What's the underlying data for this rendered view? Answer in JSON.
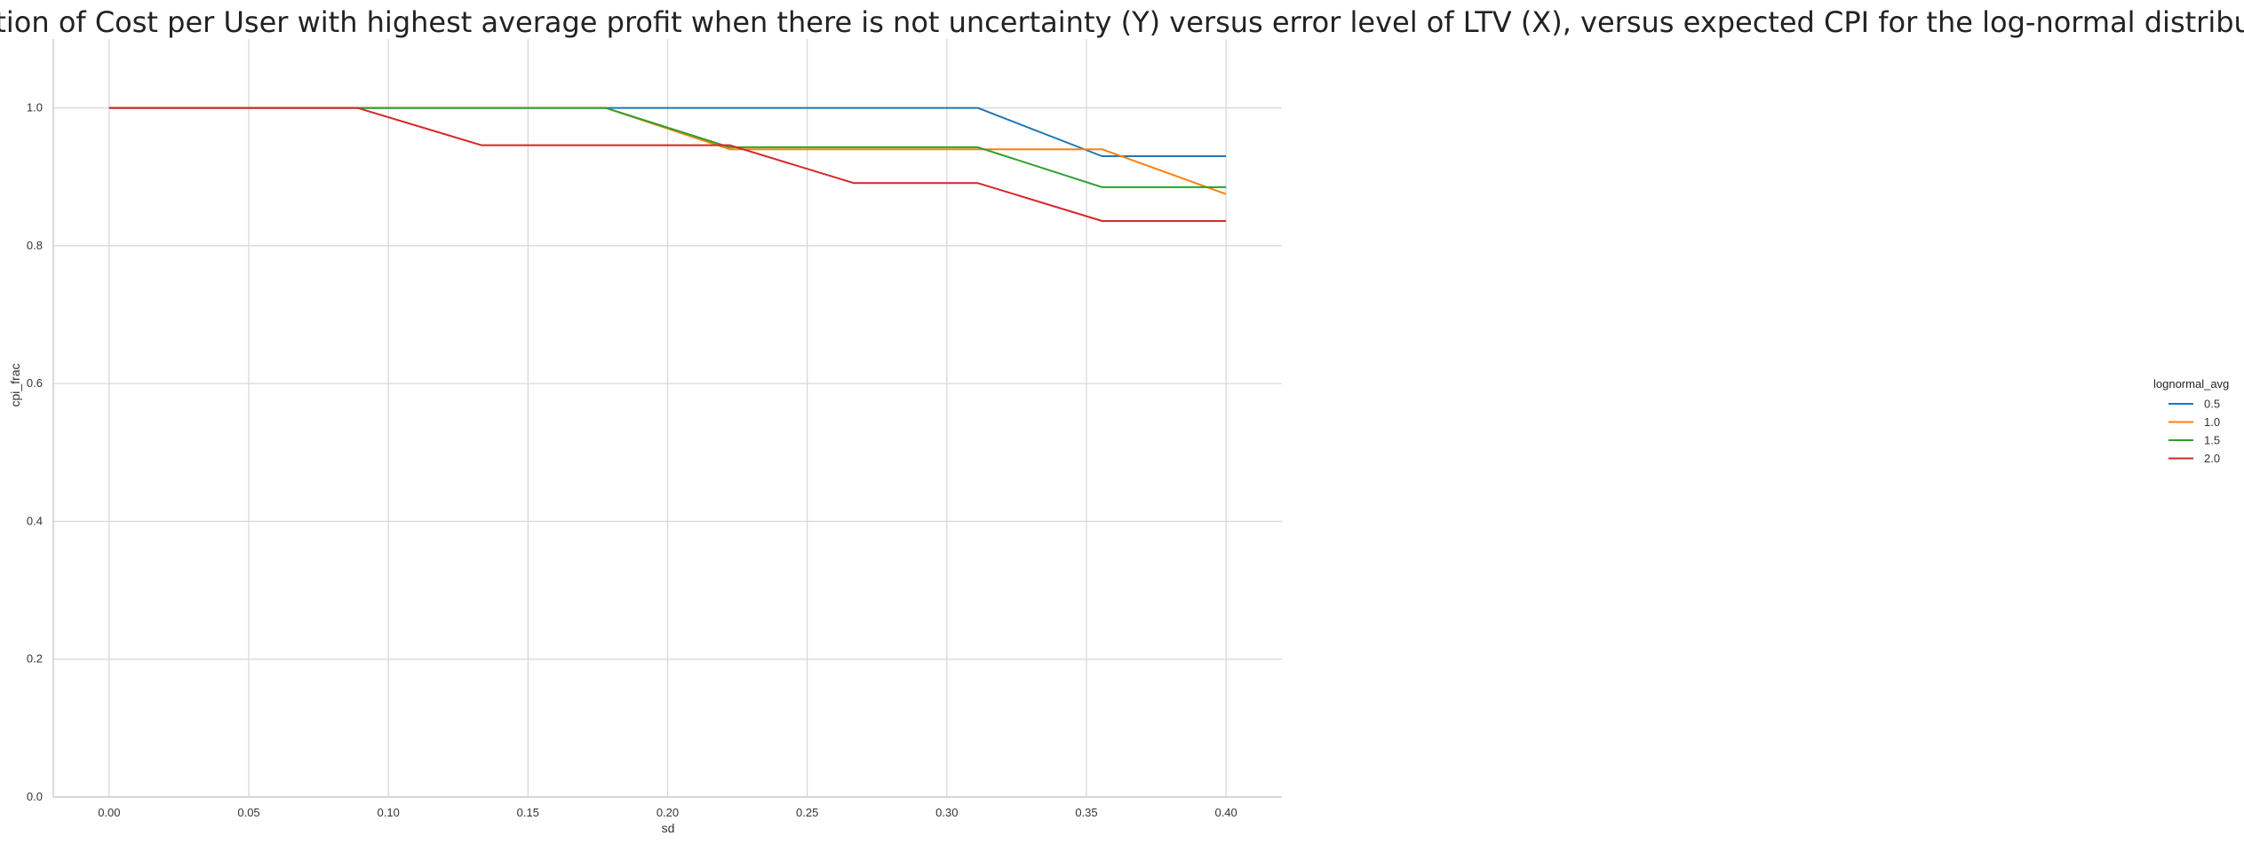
{
  "chart_data": {
    "type": "line",
    "title": "Fraction of Cost per User with highest average profit when there is not uncertainty (Y) versus error level of LTV (X), versus expected CPI for the log-normal distribution",
    "xlabel": "sd",
    "ylabel": "cpi_frac",
    "xlim": [
      -0.02,
      0.42
    ],
    "ylim": [
      0.0,
      1.1
    ],
    "xticks": [
      "0.00",
      "0.05",
      "0.10",
      "0.15",
      "0.20",
      "0.25",
      "0.30",
      "0.35",
      "0.40"
    ],
    "yticks": [
      "0.0",
      "0.2",
      "0.4",
      "0.6",
      "0.8",
      "1.0"
    ],
    "grid": true,
    "legend": {
      "title": "lognormal_avg",
      "placement": "right"
    },
    "series": [
      {
        "name": "0.5",
        "color": "#1f77b4",
        "x": [
          0.0,
          0.0444,
          0.0889,
          0.1333,
          0.1778,
          0.2222,
          0.2667,
          0.3111,
          0.3556,
          0.4
        ],
        "y": [
          1.0,
          1.0,
          1.0,
          1.0,
          1.0,
          1.0,
          1.0,
          1.0,
          0.93,
          0.93
        ]
      },
      {
        "name": "1.0",
        "color": "#ff7f0e",
        "x": [
          0.0,
          0.0444,
          0.0889,
          0.1333,
          0.1778,
          0.2222,
          0.2667,
          0.3111,
          0.3556,
          0.4
        ],
        "y": [
          1.0,
          1.0,
          1.0,
          1.0,
          1.0,
          0.94,
          0.94,
          0.94,
          0.94,
          0.875
        ]
      },
      {
        "name": "1.5",
        "color": "#2ca02c",
        "x": [
          0.0,
          0.0444,
          0.0889,
          0.1333,
          0.1778,
          0.2222,
          0.2667,
          0.3111,
          0.3556,
          0.4
        ],
        "y": [
          1.0,
          1.0,
          1.0,
          1.0,
          1.0,
          0.943,
          0.943,
          0.943,
          0.885,
          0.885
        ]
      },
      {
        "name": "2.0",
        "color": "#d62728",
        "x": [
          0.0,
          0.0444,
          0.0889,
          0.1333,
          0.1778,
          0.2222,
          0.2667,
          0.3111,
          0.3556,
          0.4
        ],
        "y": [
          1.0,
          1.0,
          1.0,
          0.946,
          0.946,
          0.946,
          0.891,
          0.891,
          0.836,
          0.836
        ]
      }
    ]
  }
}
